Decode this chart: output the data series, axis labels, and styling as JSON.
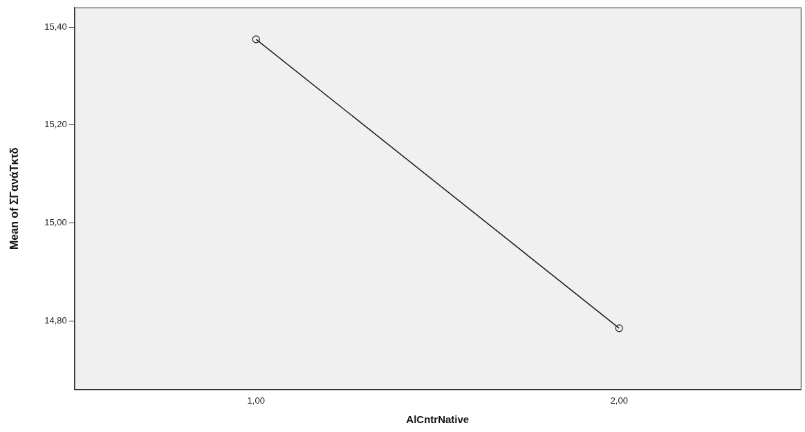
{
  "chart_data": {
    "type": "line",
    "xlabel": "AlCntrNative",
    "ylabel": "Mean of ΣΓανάΤκτδ",
    "categories": [
      "1,00",
      "2,00"
    ],
    "series": [
      {
        "color": "#1a1a1a",
        "values": [
          15.375,
          14.785
        ]
      }
    ],
    "ylim": [
      14.66,
      15.44
    ],
    "yticks": [
      {
        "value": 14.8,
        "label": "14,80"
      },
      {
        "value": 15.0,
        "label": "15,00"
      },
      {
        "value": 15.2,
        "label": "15,20"
      },
      {
        "value": 15.4,
        "label": "15,40"
      }
    ],
    "grid": false,
    "legend": false,
    "marker": "circle",
    "line_style": "solid"
  }
}
